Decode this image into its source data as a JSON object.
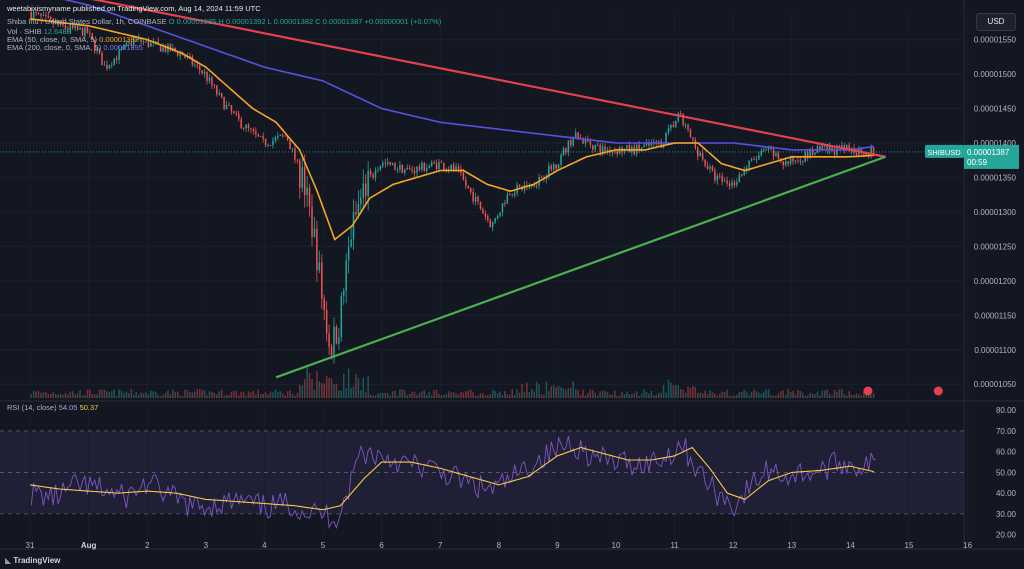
{
  "publisher": "weetabixismyname published on TradingView.com, Aug 14, 2024 11:59 UTC",
  "header": {
    "ticker_text": "Shiba Inu / United States Dollar, 1h, COINBASE",
    "ohlc": "O 0.00001385 H 0.00001392 L 0.00001382 C 0.00001387 +0.00000001 (+0.07%)",
    "vol_text": "Vol · SHIB",
    "vol_value": "12.648B",
    "ema50_text": "EMA (50, close, 0, SMA, 5)",
    "ema50_value": "0.00001382",
    "ema200_text": "EMA (200, close, 0, SMA, 5)",
    "ema200_value": "0.00001395"
  },
  "currency_button": "USD",
  "price_tag": {
    "symbol": "SHIBUSD",
    "price": "0.00001387",
    "countdown": "00:59"
  },
  "rsi_header": {
    "label": "RSI (14, close)",
    "rsi": "54.05",
    "ma": "50.37"
  },
  "footer_logo": "TradingView",
  "colors": {
    "background": "#131722",
    "up": "#26a69a",
    "down": "#ef5350",
    "ema50": "#f5a623",
    "ema200": "#5b50e0",
    "resistance": "#e5404e",
    "support": "#4caf50",
    "rsi": "#7e57c2",
    "rsi_ma": "#f7c948"
  },
  "chart_data": [
    {
      "type": "candlestick",
      "title": "Shiba Inu / United States Dollar, 1h, COINBASE",
      "x_ticks": [
        "31",
        "Aug",
        "2",
        "3",
        "4",
        "5",
        "6",
        "7",
        "8",
        "9",
        "10",
        "11",
        "12",
        "13",
        "14",
        "15",
        "16"
      ],
      "x_tick_days": [
        31,
        1,
        2,
        3,
        4,
        5,
        6,
        7,
        8,
        9,
        10,
        11,
        12,
        13,
        14,
        15,
        16
      ],
      "y_ticks": [
        "0.00001550",
        "0.00001500",
        "0.00001450",
        "0.00001400",
        "0.00001350",
        "0.00001300",
        "0.00001250",
        "0.00001200",
        "0.00001150",
        "0.00001100",
        "0.00001050"
      ],
      "ylim": [
        1.03e-05,
        1.59e-05
      ],
      "price_keyframes": [
        [
          0.0,
          1.59e-05
        ],
        [
          0.5,
          1.57e-05
        ],
        [
          1.0,
          1.56e-05
        ],
        [
          1.3,
          1.51e-05
        ],
        [
          1.8,
          1.55e-05
        ],
        [
          2.2,
          1.54e-05
        ],
        [
          2.6,
          1.53e-05
        ],
        [
          3.0,
          1.5e-05
        ],
        [
          3.3,
          1.46e-05
        ],
        [
          3.6,
          1.43e-05
        ],
        [
          4.0,
          1.4e-05
        ],
        [
          4.4,
          1.41e-05
        ],
        [
          4.7,
          1.34e-05
        ],
        [
          4.9,
          1.25e-05
        ],
        [
          5.0,
          1.18e-05
        ],
        [
          5.15,
          1.1e-05
        ],
        [
          5.3,
          1.14e-05
        ],
        [
          5.5,
          1.27e-05
        ],
        [
          5.7,
          1.33e-05
        ],
        [
          6.0,
          1.37e-05
        ],
        [
          6.5,
          1.36e-05
        ],
        [
          7.0,
          1.37e-05
        ],
        [
          7.3,
          1.36e-05
        ],
        [
          7.6,
          1.32e-05
        ],
        [
          7.9,
          1.28e-05
        ],
        [
          8.2,
          1.33e-05
        ],
        [
          8.6,
          1.34e-05
        ],
        [
          9.0,
          1.37e-05
        ],
        [
          9.3,
          1.41e-05
        ],
        [
          9.8,
          1.39e-05
        ],
        [
          10.3,
          1.39e-05
        ],
        [
          10.8,
          1.4e-05
        ],
        [
          11.1,
          1.44e-05
        ],
        [
          11.4,
          1.39e-05
        ],
        [
          11.7,
          1.35e-05
        ],
        [
          12.0,
          1.34e-05
        ],
        [
          12.3,
          1.37e-05
        ],
        [
          12.6,
          1.39e-05
        ],
        [
          12.9,
          1.37e-05
        ],
        [
          13.2,
          1.38e-05
        ],
        [
          13.5,
          1.39e-05
        ],
        [
          13.8,
          1.39e-05
        ],
        [
          14.1,
          1.39e-05
        ],
        [
          14.4,
          1.387e-05
        ]
      ],
      "ema50_keyframes": [
        [
          0.0,
          1.58e-05
        ],
        [
          1.0,
          1.57e-05
        ],
        [
          2.0,
          1.55e-05
        ],
        [
          2.6,
          1.53e-05
        ],
        [
          3.0,
          1.51e-05
        ],
        [
          3.4,
          1.48e-05
        ],
        [
          3.8,
          1.45e-05
        ],
        [
          4.2,
          1.43e-05
        ],
        [
          4.6,
          1.39e-05
        ],
        [
          4.9,
          1.33e-05
        ],
        [
          5.2,
          1.26e-05
        ],
        [
          5.5,
          1.28e-05
        ],
        [
          5.8,
          1.32e-05
        ],
        [
          6.2,
          1.34e-05
        ],
        [
          6.6,
          1.35e-05
        ],
        [
          7.0,
          1.36e-05
        ],
        [
          7.4,
          1.36e-05
        ],
        [
          7.8,
          1.34e-05
        ],
        [
          8.2,
          1.33e-05
        ],
        [
          8.6,
          1.34e-05
        ],
        [
          9.0,
          1.36e-05
        ],
        [
          9.5,
          1.38e-05
        ],
        [
          10.0,
          1.39e-05
        ],
        [
          10.5,
          1.39e-05
        ],
        [
          11.0,
          1.4e-05
        ],
        [
          11.4,
          1.4e-05
        ],
        [
          11.8,
          1.37e-05
        ],
        [
          12.2,
          1.36e-05
        ],
        [
          12.6,
          1.37e-05
        ],
        [
          13.0,
          1.38e-05
        ],
        [
          13.5,
          1.38e-05
        ],
        [
          14.0,
          1.38e-05
        ],
        [
          14.4,
          1.382e-05
        ]
      ],
      "ema200_keyframes": [
        [
          0.0,
          1.62e-05
        ],
        [
          1.0,
          1.6e-05
        ],
        [
          2.0,
          1.57e-05
        ],
        [
          3.0,
          1.54e-05
        ],
        [
          4.0,
          1.51e-05
        ],
        [
          5.0,
          1.49e-05
        ],
        [
          5.5,
          1.47e-05
        ],
        [
          6.0,
          1.45e-05
        ],
        [
          7.0,
          1.43e-05
        ],
        [
          8.0,
          1.42e-05
        ],
        [
          9.0,
          1.41e-05
        ],
        [
          10.0,
          1.4e-05
        ],
        [
          11.0,
          1.4e-05
        ],
        [
          12.0,
          1.4e-05
        ],
        [
          13.0,
          1.39e-05
        ],
        [
          14.0,
          1.39e-05
        ],
        [
          14.4,
          1.395e-05
        ]
      ],
      "resistance_line": [
        [
          0.4,
          1.62e-05
        ],
        [
          14.6,
          1.38e-05
        ]
      ],
      "support_line": [
        [
          4.2,
          1.06e-05
        ],
        [
          14.6,
          1.38e-05
        ]
      ]
    },
    {
      "type": "line",
      "title": "RSI (14, close)",
      "y_ticks": [
        "80.00",
        "70.00",
        "60.00",
        "50.00",
        "40.00",
        "30.00",
        "20.00"
      ],
      "ylim": [
        15,
        83
      ],
      "overbought": 70,
      "oversold": 30,
      "rsi_keyframes": [
        [
          0.0,
          40
        ],
        [
          0.4,
          38
        ],
        [
          0.8,
          44
        ],
        [
          1.2,
          42
        ],
        [
          1.6,
          38
        ],
        [
          2.0,
          45
        ],
        [
          2.4,
          38
        ],
        [
          2.8,
          33
        ],
        [
          3.2,
          35
        ],
        [
          3.6,
          36
        ],
        [
          4.0,
          33
        ],
        [
          4.4,
          35
        ],
        [
          4.7,
          31
        ],
        [
          5.0,
          30
        ],
        [
          5.2,
          28
        ],
        [
          5.4,
          40
        ],
        [
          5.6,
          60
        ],
        [
          6.0,
          58
        ],
        [
          6.4,
          54
        ],
        [
          6.8,
          52
        ],
        [
          7.2,
          48
        ],
        [
          7.6,
          43
        ],
        [
          7.9,
          42
        ],
        [
          8.2,
          47
        ],
        [
          8.6,
          55
        ],
        [
          8.9,
          60
        ],
        [
          9.2,
          65
        ],
        [
          9.6,
          57
        ],
        [
          10.0,
          55
        ],
        [
          10.4,
          54
        ],
        [
          10.8,
          57
        ],
        [
          11.1,
          64
        ],
        [
          11.4,
          50
        ],
        [
          11.7,
          40
        ],
        [
          12.0,
          34
        ],
        [
          12.3,
          44
        ],
        [
          12.6,
          52
        ],
        [
          12.9,
          48
        ],
        [
          13.2,
          50
        ],
        [
          13.5,
          51
        ],
        [
          13.8,
          55
        ],
        [
          14.1,
          53
        ],
        [
          14.4,
          54.05
        ]
      ],
      "rsi_ma_keyframes": [
        [
          0.0,
          44
        ],
        [
          0.5,
          42
        ],
        [
          1.0,
          41
        ],
        [
          1.5,
          40
        ],
        [
          2.0,
          41
        ],
        [
          2.5,
          40
        ],
        [
          3.0,
          37
        ],
        [
          3.5,
          36
        ],
        [
          4.0,
          35
        ],
        [
          4.5,
          34
        ],
        [
          5.0,
          32
        ],
        [
          5.3,
          34
        ],
        [
          5.7,
          47
        ],
        [
          6.0,
          55
        ],
        [
          6.5,
          55
        ],
        [
          7.0,
          52
        ],
        [
          7.5,
          48
        ],
        [
          8.0,
          44
        ],
        [
          8.5,
          48
        ],
        [
          9.0,
          58
        ],
        [
          9.4,
          62
        ],
        [
          9.8,
          59
        ],
        [
          10.2,
          56
        ],
        [
          10.6,
          56
        ],
        [
          11.0,
          58
        ],
        [
          11.3,
          62
        ],
        [
          11.6,
          52
        ],
        [
          11.9,
          40
        ],
        [
          12.2,
          37
        ],
        [
          12.6,
          46
        ],
        [
          13.0,
          50
        ],
        [
          13.5,
          51
        ],
        [
          14.0,
          53
        ],
        [
          14.4,
          50.37
        ]
      ]
    }
  ]
}
